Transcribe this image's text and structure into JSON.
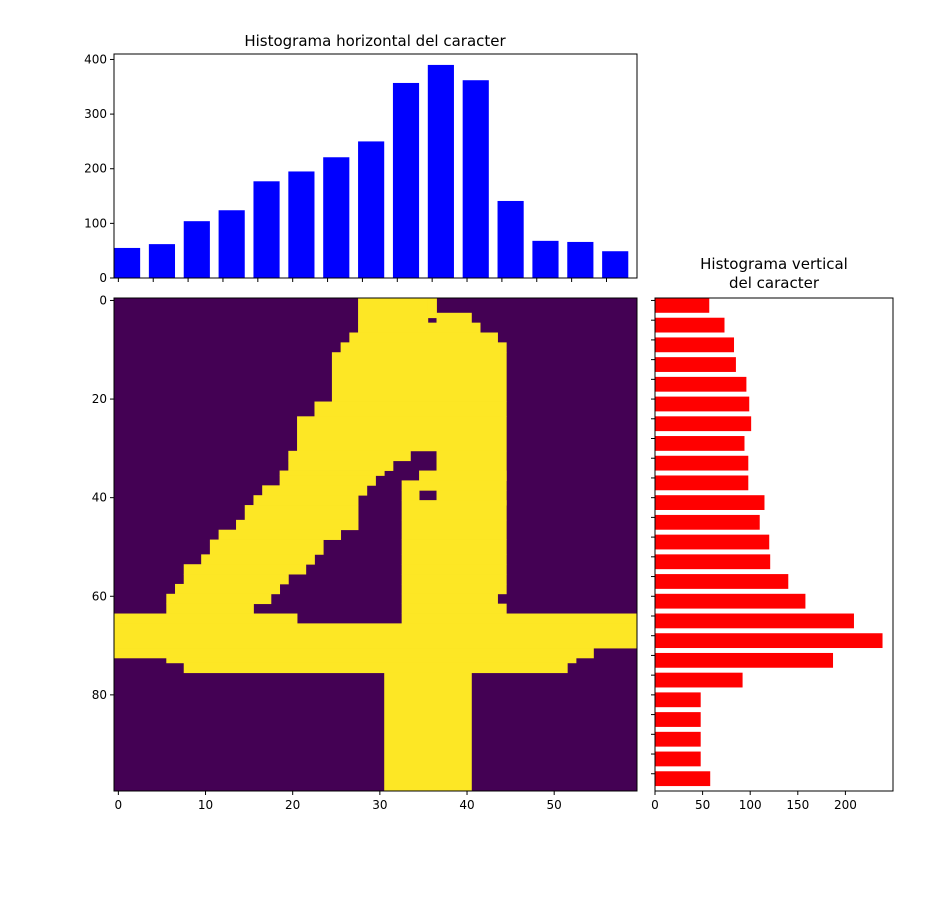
{
  "colors": {
    "horizontal_bars": "#0000ff",
    "vertical_bars": "#ff0000",
    "image_background": "#440154",
    "image_foreground": "#fde725"
  },
  "chart_data": [
    {
      "id": "horizontal",
      "type": "bar",
      "title": "Histograma horizontal del caracter",
      "x": [
        1,
        5,
        9,
        13,
        17,
        21,
        25,
        29,
        33,
        37,
        41,
        45,
        49,
        53,
        57
      ],
      "values": [
        55,
        62,
        104,
        124,
        177,
        195,
        221,
        250,
        357,
        390,
        362,
        141,
        68,
        66,
        49
      ],
      "ylim": [
        0,
        410
      ],
      "yticks": [
        "0",
        "100",
        "200",
        "300",
        "400"
      ]
    },
    {
      "id": "vertical",
      "type": "bar",
      "orientation": "horizontal",
      "title_lines": [
        "Histograma vertical",
        "del caracter"
      ],
      "y": [
        1,
        5,
        9,
        13,
        17,
        21,
        25,
        29,
        33,
        37,
        41,
        45,
        49,
        53,
        57,
        61,
        65,
        69,
        73,
        77,
        81,
        85,
        89,
        93,
        97
      ],
      "values": [
        57,
        73,
        83,
        85,
        96,
        99,
        101,
        94,
        98,
        98,
        115,
        110,
        120,
        121,
        140,
        158,
        209,
        239,
        187,
        92,
        48,
        48,
        48,
        48,
        58
      ],
      "xlim": [
        0,
        250
      ],
      "xticks": [
        "0",
        "50",
        "100",
        "150",
        "200"
      ]
    },
    {
      "id": "image",
      "type": "heatmap",
      "description": "binary image of handwritten digit 4",
      "width": 60,
      "height": 100,
      "foreground_rects": [
        [
          28,
          0,
          8,
          5
        ],
        [
          36,
          0,
          1,
          4
        ],
        [
          37,
          3,
          4,
          2
        ],
        [
          28,
          5,
          14,
          2
        ],
        [
          27,
          7,
          17,
          2
        ],
        [
          26,
          9,
          19,
          2
        ],
        [
          25,
          11,
          20,
          10
        ],
        [
          23,
          21,
          22,
          3
        ],
        [
          21,
          24,
          24,
          7
        ],
        [
          20,
          31,
          14,
          2
        ],
        [
          37,
          31,
          8,
          6
        ],
        [
          20,
          33,
          12,
          2
        ],
        [
          19,
          35,
          12,
          1
        ],
        [
          35,
          35,
          10,
          2
        ],
        [
          19,
          36,
          11,
          2
        ],
        [
          17,
          38,
          12,
          2
        ],
        [
          33,
          37,
          12,
          2
        ],
        [
          16,
          40,
          12,
          2
        ],
        [
          33,
          39,
          2,
          2
        ],
        [
          37,
          39,
          8,
          3
        ],
        [
          15,
          42,
          13,
          3
        ],
        [
          33,
          41,
          12,
          4
        ],
        [
          14,
          45,
          14,
          2
        ],
        [
          12,
          47,
          14,
          2
        ],
        [
          33,
          45,
          12,
          4
        ],
        [
          11,
          49,
          13,
          3
        ],
        [
          33,
          49,
          12,
          3
        ],
        [
          10,
          52,
          13,
          2
        ],
        [
          33,
          52,
          12,
          2
        ],
        [
          8,
          54,
          14,
          2
        ],
        [
          33,
          54,
          12,
          2
        ],
        [
          8,
          56,
          12,
          2
        ],
        [
          33,
          56,
          12,
          2
        ],
        [
          7,
          58,
          12,
          2
        ],
        [
          33,
          58,
          12,
          2
        ],
        [
          6,
          60,
          12,
          2
        ],
        [
          33,
          60,
          11,
          2
        ],
        [
          6,
          62,
          10,
          2
        ],
        [
          33,
          62,
          12,
          2
        ],
        [
          0,
          64,
          21,
          2
        ],
        [
          33,
          64,
          27,
          2
        ],
        [
          0,
          66,
          60,
          5
        ],
        [
          0,
          71,
          55,
          2
        ],
        [
          6,
          73,
          47,
          1
        ],
        [
          8,
          74,
          44,
          2
        ],
        [
          31,
          76,
          10,
          24
        ]
      ],
      "xticks": [
        "0",
        "10",
        "20",
        "30",
        "40",
        "50"
      ],
      "yticks": [
        "0",
        "20",
        "40",
        "60",
        "80"
      ]
    }
  ]
}
